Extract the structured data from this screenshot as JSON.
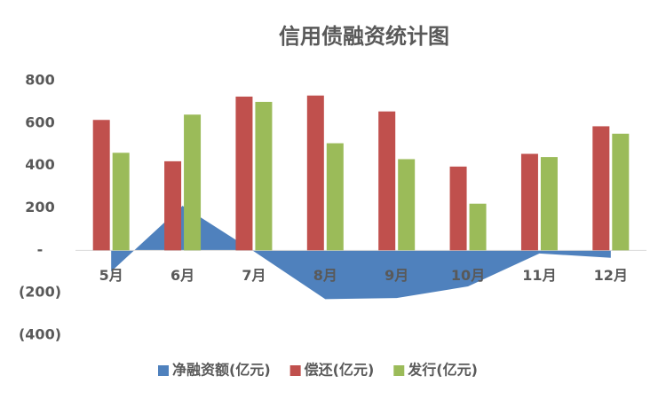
{
  "chart_data": {
    "type": "bar-area",
    "title": "信用债融资统计图",
    "categories": [
      "5月",
      "6月",
      "7月",
      "8月",
      "9月",
      "10月",
      "11月",
      "12月"
    ],
    "series": [
      {
        "name": "净融资额(亿元)",
        "color": "#4f81bd",
        "kind": "area",
        "values": [
          -100,
          210,
          -5,
          -230,
          -225,
          -170,
          -15,
          -35
        ]
      },
      {
        "name": "偿还(亿元)",
        "color": "#c0504d",
        "kind": "bar",
        "values": [
          615,
          420,
          725,
          730,
          655,
          395,
          455,
          585
        ]
      },
      {
        "name": "发行(亿元)",
        "color": "#9bbb59",
        "kind": "bar",
        "values": [
          460,
          640,
          700,
          505,
          430,
          220,
          440,
          550
        ]
      }
    ],
    "ylim": [
      -400,
      800
    ],
    "yticks": [
      {
        "value": -400,
        "label": "(400)"
      },
      {
        "value": -200,
        "label": "(200)"
      },
      {
        "value": 0,
        "label": "-"
      },
      200,
      400,
      600,
      800
    ],
    "legend": "bottom"
  }
}
